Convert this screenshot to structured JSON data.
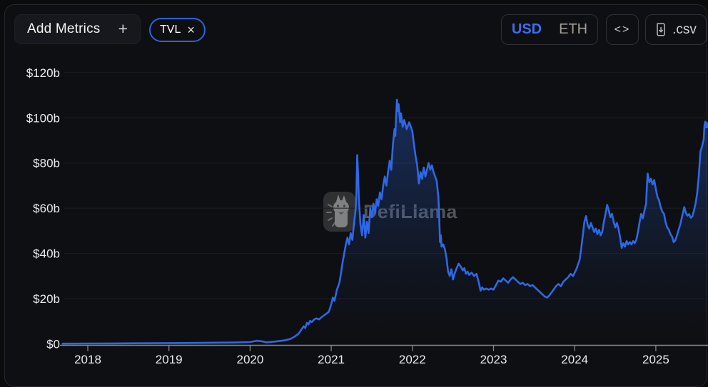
{
  "colors": {
    "accent_blue": "#2d69e6",
    "chip_border": "#2b63dd",
    "usd_active_text": "#3b6ff0",
    "panel_bg": "#0e0f12",
    "grid_line": "#1d1f22",
    "axis_line": "#84878c"
  },
  "toolbar": {
    "add_metrics_label": "Add Metrics",
    "plus_icon": "+",
    "metric_chip": {
      "label": "TVL",
      "close_icon": "×"
    },
    "currency_toggle": {
      "options": [
        "USD",
        "ETH"
      ],
      "selected": "USD"
    },
    "embed_icon": "<>",
    "csv_label": ".csv"
  },
  "watermark": {
    "text": "DefiLlama"
  },
  "chart_data": {
    "type": "area",
    "title": "",
    "xlabel": "",
    "ylabel": "",
    "grid": "horizontal",
    "legend": "none",
    "ylim": [
      0,
      120
    ],
    "xlim": [
      2017.69,
      2025.66
    ],
    "x_ticks": [
      {
        "value": 2018,
        "label": "2018"
      },
      {
        "value": 2019,
        "label": "2019"
      },
      {
        "value": 2020,
        "label": "2020"
      },
      {
        "value": 2021,
        "label": "2021"
      },
      {
        "value": 2022,
        "label": "2022"
      },
      {
        "value": 2023,
        "label": "2023"
      },
      {
        "value": 2024,
        "label": "2024"
      },
      {
        "value": 2025,
        "label": "2025"
      }
    ],
    "y_ticks": [
      {
        "value": 0,
        "label": "$0"
      },
      {
        "value": 20,
        "label": "$20b"
      },
      {
        "value": 40,
        "label": "$40b"
      },
      {
        "value": 60,
        "label": "$60b"
      },
      {
        "value": 80,
        "label": "$80b"
      },
      {
        "value": 100,
        "label": "$100b"
      },
      {
        "value": 120,
        "label": "$120b"
      }
    ],
    "series": [
      {
        "name": "TVL",
        "unit": "USD billions",
        "points": [
          [
            2017.69,
            0.1
          ],
          [
            2018.0,
            0.15
          ],
          [
            2018.3,
            0.2
          ],
          [
            2018.6,
            0.25
          ],
          [
            2019.0,
            0.35
          ],
          [
            2019.4,
            0.45
          ],
          [
            2019.8,
            0.6
          ],
          [
            2020.0,
            0.8
          ],
          [
            2020.08,
            1.4
          ],
          [
            2020.15,
            1.1
          ],
          [
            2020.2,
            0.7
          ],
          [
            2020.3,
            1.0
          ],
          [
            2020.42,
            1.5
          ],
          [
            2020.5,
            2.2
          ],
          [
            2020.55,
            3.2
          ],
          [
            2020.6,
            4.6
          ],
          [
            2020.63,
            6.2
          ],
          [
            2020.66,
            7.8
          ],
          [
            2020.68,
            7.0
          ],
          [
            2020.7,
            9.3
          ],
          [
            2020.72,
            8.6
          ],
          [
            2020.74,
            10.2
          ],
          [
            2020.76,
            9.6
          ],
          [
            2020.79,
            10.8
          ],
          [
            2020.82,
            11.3
          ],
          [
            2020.85,
            10.8
          ],
          [
            2020.88,
            11.8
          ],
          [
            2020.91,
            12.6
          ],
          [
            2020.94,
            13.4
          ],
          [
            2020.97,
            14.2
          ],
          [
            2021.0,
            17.5
          ],
          [
            2021.02,
            20.5
          ],
          [
            2021.04,
            19.0
          ],
          [
            2021.07,
            24
          ],
          [
            2021.1,
            27
          ],
          [
            2021.12,
            31
          ],
          [
            2021.14,
            36
          ],
          [
            2021.16,
            40
          ],
          [
            2021.18,
            44
          ],
          [
            2021.2,
            47
          ],
          [
            2021.22,
            44
          ],
          [
            2021.24,
            49
          ],
          [
            2021.26,
            46
          ],
          [
            2021.28,
            53
          ],
          [
            2021.3,
            59
          ],
          [
            2021.31,
            66
          ],
          [
            2021.32,
            83.5
          ],
          [
            2021.33,
            76
          ],
          [
            2021.34,
            64
          ],
          [
            2021.36,
            53
          ],
          [
            2021.38,
            48
          ],
          [
            2021.4,
            57
          ],
          [
            2021.42,
            47
          ],
          [
            2021.44,
            54
          ],
          [
            2021.46,
            49
          ],
          [
            2021.48,
            60
          ],
          [
            2021.5,
            56
          ],
          [
            2021.52,
            62
          ],
          [
            2021.54,
            58
          ],
          [
            2021.56,
            64
          ],
          [
            2021.58,
            61
          ],
          [
            2021.6,
            67
          ],
          [
            2021.62,
            64
          ],
          [
            2021.64,
            70
          ],
          [
            2021.66,
            74
          ],
          [
            2021.68,
            70
          ],
          [
            2021.7,
            76
          ],
          [
            2021.72,
            81
          ],
          [
            2021.74,
            77
          ],
          [
            2021.76,
            88
          ],
          [
            2021.78,
            95
          ],
          [
            2021.79,
            92
          ],
          [
            2021.8,
            101
          ],
          [
            2021.81,
            108
          ],
          [
            2021.82,
            103
          ],
          [
            2021.83,
            106
          ],
          [
            2021.85,
            98
          ],
          [
            2021.86,
            102
          ],
          [
            2021.88,
            96
          ],
          [
            2021.9,
            99
          ],
          [
            2021.93,
            95
          ],
          [
            2021.96,
            98
          ],
          [
            2022.0,
            94
          ],
          [
            2022.02,
            88
          ],
          [
            2022.04,
            83
          ],
          [
            2022.06,
            79
          ],
          [
            2022.08,
            71
          ],
          [
            2022.1,
            76
          ],
          [
            2022.12,
            73
          ],
          [
            2022.14,
            78
          ],
          [
            2022.16,
            74
          ],
          [
            2022.18,
            77
          ],
          [
            2022.2,
            80
          ],
          [
            2022.22,
            77
          ],
          [
            2022.24,
            79
          ],
          [
            2022.26,
            76
          ],
          [
            2022.28,
            74
          ],
          [
            2022.3,
            72
          ],
          [
            2022.32,
            65
          ],
          [
            2022.33,
            57
          ],
          [
            2022.34,
            45
          ],
          [
            2022.35,
            48
          ],
          [
            2022.36,
            43
          ],
          [
            2022.38,
            44
          ],
          [
            2022.4,
            42
          ],
          [
            2022.42,
            38
          ],
          [
            2022.44,
            32
          ],
          [
            2022.46,
            30
          ],
          [
            2022.48,
            33
          ],
          [
            2022.5,
            28.5
          ],
          [
            2022.52,
            31
          ],
          [
            2022.54,
            33
          ],
          [
            2022.57,
            35.5
          ],
          [
            2022.6,
            34
          ],
          [
            2022.62,
            32.5
          ],
          [
            2022.64,
            33.5
          ],
          [
            2022.66,
            31
          ],
          [
            2022.68,
            32
          ],
          [
            2022.7,
            30.5
          ],
          [
            2022.73,
            31.5
          ],
          [
            2022.76,
            30
          ],
          [
            2022.79,
            31
          ],
          [
            2022.82,
            27
          ],
          [
            2022.84,
            23.5
          ],
          [
            2022.86,
            25
          ],
          [
            2022.88,
            24
          ],
          [
            2022.91,
            24.5
          ],
          [
            2022.94,
            24
          ],
          [
            2022.97,
            24.5
          ],
          [
            2023.0,
            24
          ],
          [
            2023.03,
            26
          ],
          [
            2023.06,
            28
          ],
          [
            2023.09,
            27.5
          ],
          [
            2023.12,
            29
          ],
          [
            2023.15,
            28
          ],
          [
            2023.18,
            27
          ],
          [
            2023.21,
            28.5
          ],
          [
            2023.24,
            29.5
          ],
          [
            2023.27,
            28.5
          ],
          [
            2023.3,
            27.5
          ],
          [
            2023.33,
            26.5
          ],
          [
            2023.36,
            27
          ],
          [
            2023.39,
            26
          ],
          [
            2023.42,
            26.5
          ],
          [
            2023.45,
            25.5
          ],
          [
            2023.48,
            26
          ],
          [
            2023.51,
            25
          ],
          [
            2023.54,
            24
          ],
          [
            2023.57,
            23
          ],
          [
            2023.6,
            22
          ],
          [
            2023.63,
            21
          ],
          [
            2023.66,
            20.5
          ],
          [
            2023.69,
            21.5
          ],
          [
            2023.71,
            22.5
          ],
          [
            2023.74,
            24
          ],
          [
            2023.77,
            25.5
          ],
          [
            2023.8,
            26.5
          ],
          [
            2023.83,
            25.5
          ],
          [
            2023.86,
            27.5
          ],
          [
            2023.89,
            28.5
          ],
          [
            2023.92,
            29.5
          ],
          [
            2023.95,
            31
          ],
          [
            2023.98,
            30
          ],
          [
            2024.0,
            31.5
          ],
          [
            2024.02,
            33
          ],
          [
            2024.04,
            35
          ],
          [
            2024.06,
            37
          ],
          [
            2024.08,
            42
          ],
          [
            2024.1,
            48
          ],
          [
            2024.12,
            54
          ],
          [
            2024.14,
            56.5
          ],
          [
            2024.16,
            52.5
          ],
          [
            2024.18,
            51
          ],
          [
            2024.2,
            53.5
          ],
          [
            2024.22,
            51.5
          ],
          [
            2024.24,
            49.5
          ],
          [
            2024.26,
            51
          ],
          [
            2024.28,
            48.5
          ],
          [
            2024.3,
            50.5
          ],
          [
            2024.32,
            48
          ],
          [
            2024.34,
            49.5
          ],
          [
            2024.36,
            54
          ],
          [
            2024.38,
            57.5
          ],
          [
            2024.4,
            61.5
          ],
          [
            2024.42,
            59
          ],
          [
            2024.44,
            56
          ],
          [
            2024.46,
            57.5
          ],
          [
            2024.48,
            54
          ],
          [
            2024.5,
            51.5
          ],
          [
            2024.52,
            53.5
          ],
          [
            2024.54,
            51
          ],
          [
            2024.56,
            47
          ],
          [
            2024.58,
            42.5
          ],
          [
            2024.6,
            44.5
          ],
          [
            2024.62,
            43
          ],
          [
            2024.64,
            45.5
          ],
          [
            2024.66,
            44
          ],
          [
            2024.68,
            45
          ],
          [
            2024.7,
            44
          ],
          [
            2024.72,
            45.5
          ],
          [
            2024.74,
            44.5
          ],
          [
            2024.76,
            46
          ],
          [
            2024.78,
            49.5
          ],
          [
            2024.8,
            54
          ],
          [
            2024.82,
            57.5
          ],
          [
            2024.84,
            55.5
          ],
          [
            2024.86,
            59
          ],
          [
            2024.88,
            62
          ],
          [
            2024.89,
            70
          ],
          [
            2024.9,
            75.3
          ],
          [
            2024.92,
            71.5
          ],
          [
            2024.94,
            73
          ],
          [
            2024.96,
            70.5
          ],
          [
            2024.98,
            72.5
          ],
          [
            2025.0,
            68.5
          ],
          [
            2025.02,
            65
          ],
          [
            2025.04,
            63.5
          ],
          [
            2025.06,
            60.5
          ],
          [
            2025.08,
            58.5
          ],
          [
            2025.1,
            57.5
          ],
          [
            2025.12,
            54
          ],
          [
            2025.14,
            51.5
          ],
          [
            2025.16,
            50.5
          ],
          [
            2025.18,
            48.5
          ],
          [
            2025.2,
            47.5
          ],
          [
            2025.22,
            45
          ],
          [
            2025.24,
            45.8
          ],
          [
            2025.26,
            47.9
          ],
          [
            2025.28,
            50.4
          ],
          [
            2025.3,
            52.6
          ],
          [
            2025.32,
            55.8
          ],
          [
            2025.34,
            58.9
          ],
          [
            2025.35,
            60.5
          ],
          [
            2025.37,
            58
          ],
          [
            2025.39,
            56.7
          ],
          [
            2025.41,
            57.4
          ],
          [
            2025.43,
            55.8
          ],
          [
            2025.45,
            56.4
          ],
          [
            2025.47,
            58.9
          ],
          [
            2025.49,
            62.1
          ],
          [
            2025.51,
            66.8
          ],
          [
            2025.53,
            74.7
          ],
          [
            2025.55,
            85.1
          ],
          [
            2025.57,
            87.3
          ],
          [
            2025.59,
            90.5
          ],
          [
            2025.6,
            96.8
          ],
          [
            2025.61,
            98.3
          ],
          [
            2025.62,
            95.8
          ],
          [
            2025.63,
            97.7
          ],
          [
            2025.64,
            95.8
          ]
        ]
      }
    ]
  }
}
